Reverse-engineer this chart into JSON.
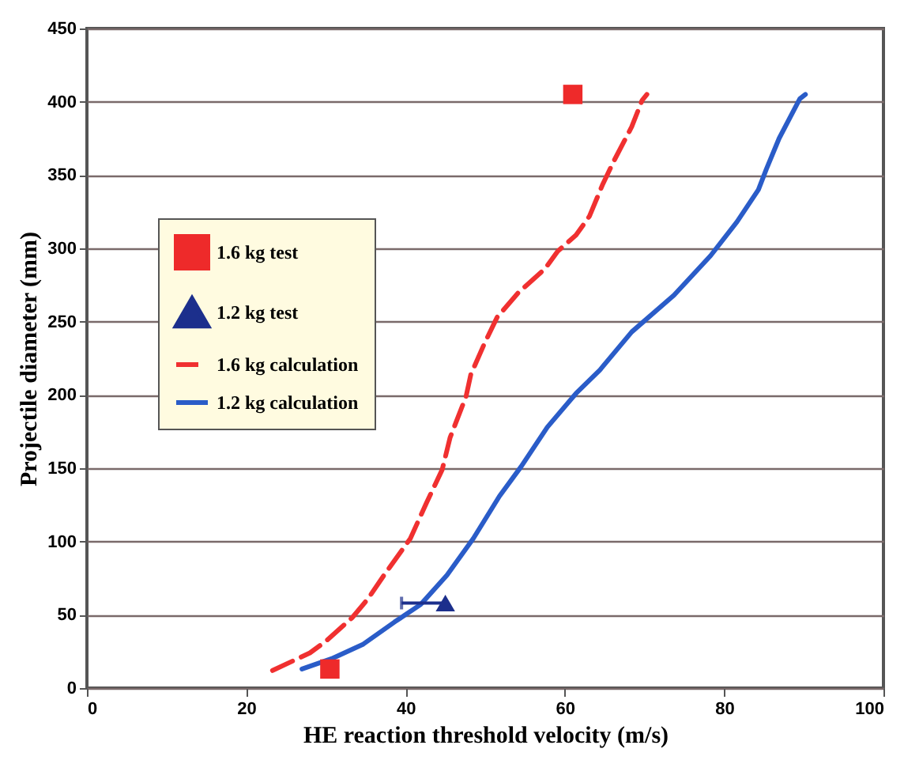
{
  "chart_data": {
    "type": "line",
    "xlabel": "HE reaction threshold velocity (m/s)",
    "ylabel": "Projectile diameter (mm)",
    "xlim": [
      0,
      100
    ],
    "xticks": [
      0,
      20,
      40,
      60,
      80,
      100
    ],
    "ylim": [
      0,
      450
    ],
    "yticks": [
      0,
      50,
      100,
      150,
      200,
      250,
      300,
      350,
      400,
      450
    ],
    "grid": "y",
    "legend": "top left",
    "series": [
      {
        "name": "1.6 kg test",
        "type": "scatter",
        "marker": "square",
        "color": "#ee2a2a",
        "x": [
          30.5,
          61
        ],
        "values": [
          13,
          405
        ]
      },
      {
        "name": "1.2 kg test",
        "type": "scatter",
        "marker": "triangle",
        "color": "#1c2f8c",
        "x": [
          45
        ],
        "values": [
          58
        ],
        "xerrors": [
          [
            39.5,
            45
          ]
        ]
      },
      {
        "name": "1.6 kg calculation",
        "line_style": "dashed",
        "color": "#f03030",
        "x": [
          23.3,
          28,
          30,
          33.3,
          35.3,
          37.3,
          40.6,
          42.6,
          44.6,
          45.6,
          46.6,
          47.6,
          48.2,
          49.9,
          51.5,
          54.2,
          57.5,
          59.1,
          61.4,
          63.1,
          64.7,
          66.1,
          68.4,
          69.7,
          70.3
        ],
        "values": [
          12,
          24,
          32,
          48,
          61,
          77,
          102,
          126,
          149,
          171,
          185,
          199,
          214,
          235,
          253,
          270,
          286,
          298,
          309,
          322,
          343,
          359,
          383,
          401,
          405
        ]
      },
      {
        "name": "1.2 kg calculation",
        "line_style": "solid",
        "color": "#2a5cc8",
        "x": [
          27,
          30.7,
          34.7,
          38.6,
          41.9,
          45.2,
          48.5,
          51.8,
          54.5,
          57.8,
          61.4,
          64.4,
          68.4,
          73.7,
          78.3,
          81.6,
          84.3,
          85.3,
          86.9,
          89.5,
          90.2
        ],
        "values": [
          13,
          20,
          30,
          45,
          57,
          77,
          102,
          131,
          151,
          178,
          201,
          217,
          243,
          268,
          295,
          318,
          340,
          354,
          375,
          402,
          405
        ]
      }
    ]
  }
}
